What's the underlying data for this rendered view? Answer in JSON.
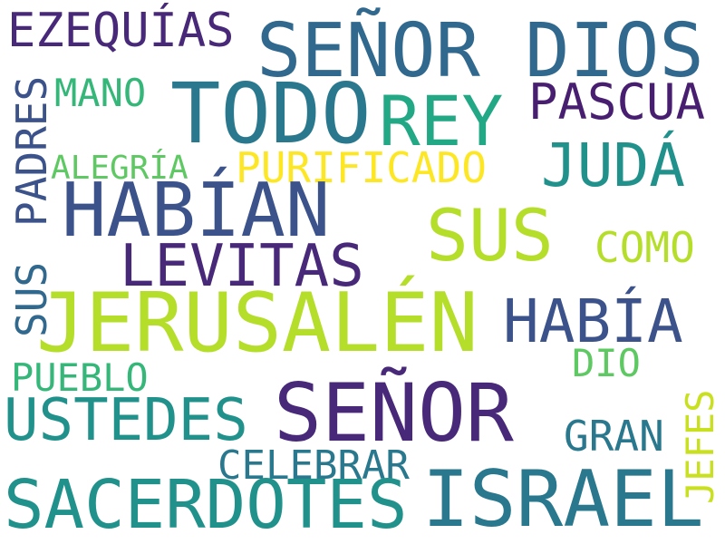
{
  "words": {
    "ezequias": {
      "text": "EZEQUÍAS",
      "color": "#482878"
    },
    "senor_dios": {
      "text": "SEÑOR DIOS",
      "color": "#31688e"
    },
    "todo": {
      "text": "TODO",
      "color": "#2a788e"
    },
    "mano": {
      "text": "MANO",
      "color": "#35b779"
    },
    "rey": {
      "text": "REY",
      "color": "#22a884"
    },
    "pascua": {
      "text": "PASCUA",
      "color": "#481f70"
    },
    "padres": {
      "text": "PADRES",
      "color": "#3b528b"
    },
    "alegria": {
      "text": "ALEGRÍA",
      "color": "#5ec962"
    },
    "purificado": {
      "text": "PURIFICADO",
      "color": "#fde725"
    },
    "juda": {
      "text": "JUDÁ",
      "color": "#21918c"
    },
    "habian": {
      "text": "HABÍAN",
      "color": "#3b528b"
    },
    "sus_big": {
      "text": "SUS",
      "color": "#b5de2b"
    },
    "levitas": {
      "text": "LEVITAS",
      "color": "#482878"
    },
    "como": {
      "text": "COMO",
      "color": "#b5de2b"
    },
    "sus_small": {
      "text": "SUS",
      "color": "#31688e"
    },
    "jerusalen": {
      "text": "JERUSALÉN",
      "color": "#b5de2b"
    },
    "habia": {
      "text": "HABÍA",
      "color": "#3b528b"
    },
    "pueblo": {
      "text": "PUEBLO",
      "color": "#35b779"
    },
    "dio": {
      "text": "DIO",
      "color": "#5ec962"
    },
    "ustedes": {
      "text": "USTEDES",
      "color": "#21918c"
    },
    "senor": {
      "text": "SEÑOR",
      "color": "#482878"
    },
    "gran": {
      "text": "GRAN",
      "color": "#2a788e"
    },
    "jefes": {
      "text": "JEFES",
      "color": "#c8e020"
    },
    "celebrar": {
      "text": "CELEBRAR",
      "color": "#2a788e"
    },
    "sacerdotes": {
      "text": "SACERDOTES",
      "color": "#21918c"
    },
    "israel": {
      "text": "ISRAEL",
      "color": "#2a788e"
    }
  }
}
